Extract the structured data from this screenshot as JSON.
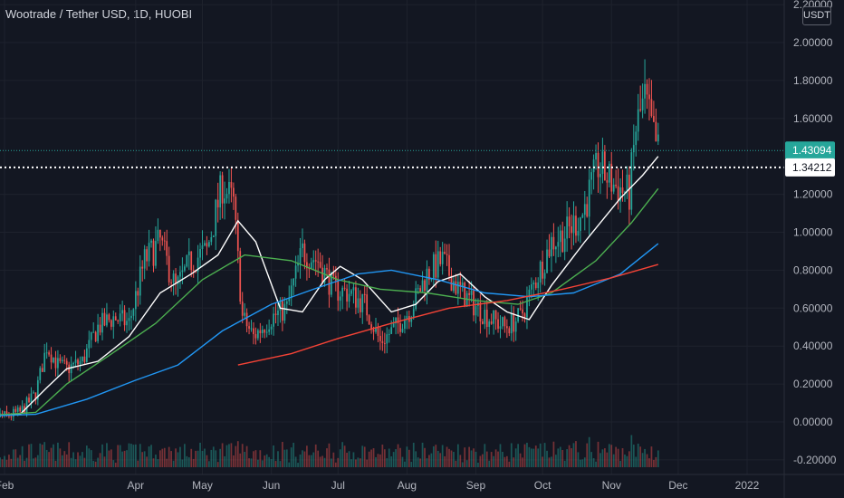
{
  "header": {
    "title": "Wootrade / Tether USD, 1D, HUOBI",
    "unit": "USDT"
  },
  "colors": {
    "background": "#131722",
    "up": "#26a69a",
    "down": "#ef5350",
    "ma_fast": "#ffffff",
    "ma_mid": "#4caf50",
    "ma_slow": "#2196f3",
    "ma_long": "#f44336",
    "price_badge": "#26a69a",
    "level_badge": "#ffffff"
  },
  "chart_data": {
    "type": "candlestick",
    "title": "Wootrade / Tether USD, 1D, HUOBI",
    "ylim": [
      -0.2,
      2.2
    ],
    "y_ticks": [
      "2.20000",
      "2.00000",
      "1.80000",
      "1.60000",
      "1.20000",
      "1.00000",
      "0.80000",
      "0.60000",
      "0.40000",
      "0.20000",
      "0.00000",
      "-0.20000"
    ],
    "y_tick_values": [
      2.2,
      2.0,
      1.8,
      1.6,
      1.2,
      1.0,
      0.8,
      0.6,
      0.4,
      0.2,
      0.0,
      -0.2
    ],
    "x_ticks": [
      "Feb",
      "Apr",
      "May",
      "Jun",
      "Jul",
      "Aug",
      "Sep",
      "Oct",
      "Nov",
      "Dec",
      "2022"
    ],
    "x_tick_dates": [
      "2021-02-01",
      "2021-04-01",
      "2021-05-01",
      "2021-06-01",
      "2021-07-01",
      "2021-08-01",
      "2021-09-01",
      "2021-10-01",
      "2021-11-01",
      "2021-12-01",
      "2022-01-01"
    ],
    "current_price": "1.43094",
    "current_price_value": 1.43094,
    "horizontal_level": "1.34212",
    "horizontal_level_value": 1.34212,
    "close_path": [
      [
        "2021-01-20",
        0.03
      ],
      [
        "2021-02-01",
        0.03
      ],
      [
        "2021-02-08",
        0.05
      ],
      [
        "2021-02-15",
        0.15
      ],
      [
        "2021-02-20",
        0.4
      ],
      [
        "2021-02-25",
        0.3
      ],
      [
        "2021-03-01",
        0.28
      ],
      [
        "2021-03-08",
        0.32
      ],
      [
        "2021-03-15",
        0.5
      ],
      [
        "2021-03-22",
        0.55
      ],
      [
        "2021-03-29",
        0.52
      ],
      [
        "2021-04-05",
        0.85
      ],
      [
        "2021-04-12",
        0.95
      ],
      [
        "2021-04-19",
        0.7
      ],
      [
        "2021-04-26",
        0.85
      ],
      [
        "2021-05-03",
        0.9
      ],
      [
        "2021-05-10",
        1.25
      ],
      [
        "2021-05-15",
        1.15
      ],
      [
        "2021-05-19",
        0.55
      ],
      [
        "2021-05-24",
        0.45
      ],
      [
        "2021-06-01",
        0.55
      ],
      [
        "2021-06-08",
        0.6
      ],
      [
        "2021-06-15",
        0.9
      ],
      [
        "2021-06-22",
        0.85
      ],
      [
        "2021-06-29",
        0.7
      ],
      [
        "2021-07-06",
        0.68
      ],
      [
        "2021-07-13",
        0.62
      ],
      [
        "2021-07-20",
        0.42
      ],
      [
        "2021-07-27",
        0.5
      ],
      [
        "2021-08-03",
        0.6
      ],
      [
        "2021-08-10",
        0.78
      ],
      [
        "2021-08-17",
        0.85
      ],
      [
        "2021-08-24",
        0.7
      ],
      [
        "2021-08-31",
        0.62
      ],
      [
        "2021-09-07",
        0.55
      ],
      [
        "2021-09-14",
        0.5
      ],
      [
        "2021-09-21",
        0.55
      ],
      [
        "2021-09-28",
        0.75
      ],
      [
        "2021-10-05",
        0.95
      ],
      [
        "2021-10-12",
        1.0
      ],
      [
        "2021-10-19",
        1.1
      ],
      [
        "2021-10-26",
        1.35
      ],
      [
        "2021-11-02",
        1.25
      ],
      [
        "2021-11-09",
        1.2
      ],
      [
        "2021-11-12",
        1.55
      ],
      [
        "2021-11-16",
        1.7
      ],
      [
        "2021-11-20",
        1.5
      ],
      [
        "2021-11-22",
        1.43
      ]
    ],
    "series": [
      {
        "key": "ma_fast",
        "points": [
          [
            "2021-01-20",
            0.03
          ],
          [
            "2021-02-08",
            0.04
          ],
          [
            "2021-02-20",
            0.18
          ],
          [
            "2021-03-01",
            0.28
          ],
          [
            "2021-03-15",
            0.32
          ],
          [
            "2021-03-29",
            0.45
          ],
          [
            "2021-04-12",
            0.68
          ],
          [
            "2021-04-26",
            0.78
          ],
          [
            "2021-05-08",
            0.88
          ],
          [
            "2021-05-17",
            1.06
          ],
          [
            "2021-05-25",
            0.95
          ],
          [
            "2021-06-05",
            0.6
          ],
          [
            "2021-06-15",
            0.58
          ],
          [
            "2021-06-25",
            0.75
          ],
          [
            "2021-07-02",
            0.82
          ],
          [
            "2021-07-12",
            0.75
          ],
          [
            "2021-07-25",
            0.58
          ],
          [
            "2021-08-05",
            0.62
          ],
          [
            "2021-08-15",
            0.74
          ],
          [
            "2021-08-25",
            0.78
          ],
          [
            "2021-09-05",
            0.66
          ],
          [
            "2021-09-15",
            0.58
          ],
          [
            "2021-09-25",
            0.54
          ],
          [
            "2021-10-05",
            0.72
          ],
          [
            "2021-10-20",
            0.95
          ],
          [
            "2021-11-05",
            1.18
          ],
          [
            "2021-11-15",
            1.3
          ],
          [
            "2021-11-22",
            1.4
          ]
        ]
      },
      {
        "key": "ma_mid",
        "points": [
          [
            "2021-01-20",
            0.03
          ],
          [
            "2021-02-15",
            0.05
          ],
          [
            "2021-03-01",
            0.2
          ],
          [
            "2021-03-20",
            0.35
          ],
          [
            "2021-04-10",
            0.52
          ],
          [
            "2021-05-01",
            0.75
          ],
          [
            "2021-05-20",
            0.88
          ],
          [
            "2021-06-10",
            0.85
          ],
          [
            "2021-07-01",
            0.75
          ],
          [
            "2021-07-20",
            0.7
          ],
          [
            "2021-08-10",
            0.68
          ],
          [
            "2021-09-01",
            0.64
          ],
          [
            "2021-09-20",
            0.62
          ],
          [
            "2021-10-05",
            0.68
          ],
          [
            "2021-10-25",
            0.85
          ],
          [
            "2021-11-10",
            1.05
          ],
          [
            "2021-11-22",
            1.23
          ]
        ]
      },
      {
        "key": "ma_slow",
        "points": [
          [
            "2021-01-20",
            0.03
          ],
          [
            "2021-02-15",
            0.04
          ],
          [
            "2021-03-10",
            0.12
          ],
          [
            "2021-04-01",
            0.22
          ],
          [
            "2021-04-20",
            0.3
          ],
          [
            "2021-05-10",
            0.48
          ],
          [
            "2021-06-01",
            0.62
          ],
          [
            "2021-06-20",
            0.7
          ],
          [
            "2021-07-10",
            0.78
          ],
          [
            "2021-07-25",
            0.8
          ],
          [
            "2021-08-15",
            0.75
          ],
          [
            "2021-09-05",
            0.68
          ],
          [
            "2021-09-25",
            0.66
          ],
          [
            "2021-10-15",
            0.68
          ],
          [
            "2021-11-05",
            0.78
          ],
          [
            "2021-11-22",
            0.94
          ]
        ]
      },
      {
        "key": "ma_long",
        "points": [
          [
            "2021-05-17",
            0.3
          ],
          [
            "2021-06-10",
            0.36
          ],
          [
            "2021-07-01",
            0.44
          ],
          [
            "2021-07-25",
            0.52
          ],
          [
            "2021-08-20",
            0.6
          ],
          [
            "2021-09-15",
            0.64
          ],
          [
            "2021-10-10",
            0.7
          ],
          [
            "2021-11-01",
            0.76
          ],
          [
            "2021-11-22",
            0.83
          ]
        ]
      }
    ]
  }
}
